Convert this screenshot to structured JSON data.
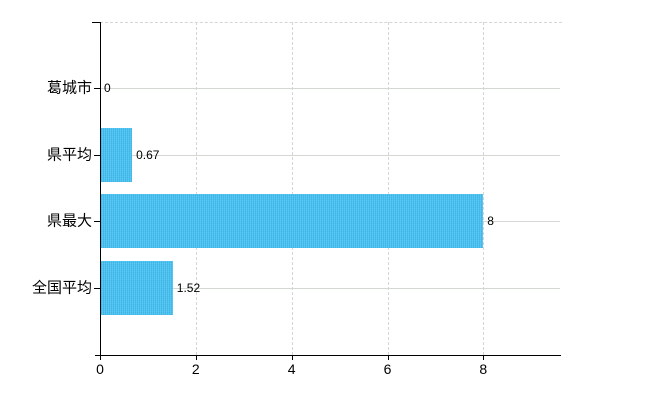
{
  "chart_data": {
    "type": "bar",
    "orientation": "horizontal",
    "title": "",
    "xlabel": "",
    "ylabel": "",
    "categories": [
      "葛城市",
      "県平均",
      "県最大",
      "全国平均"
    ],
    "values": [
      0,
      0.67,
      8,
      1.52
    ],
    "value_labels": [
      "0",
      "0.67",
      "8",
      "1.52"
    ],
    "x_ticks": [
      0,
      2,
      4,
      6,
      8
    ],
    "x_tick_labels": [
      "0",
      "2",
      "4",
      "6",
      "8"
    ],
    "xlim": [
      0,
      9.6
    ],
    "legend": "none",
    "grid": {
      "horizontal_lines": "solid",
      "vertical_lines": "dashed",
      "top_border": "dashed"
    },
    "colors": {
      "bar": "#41beef",
      "horizontal_gridline": "#d3d8d3",
      "vertical_gridline": "#d5d4d8",
      "axis": "#000000",
      "text": "#000000",
      "background": "#ffffff"
    }
  }
}
